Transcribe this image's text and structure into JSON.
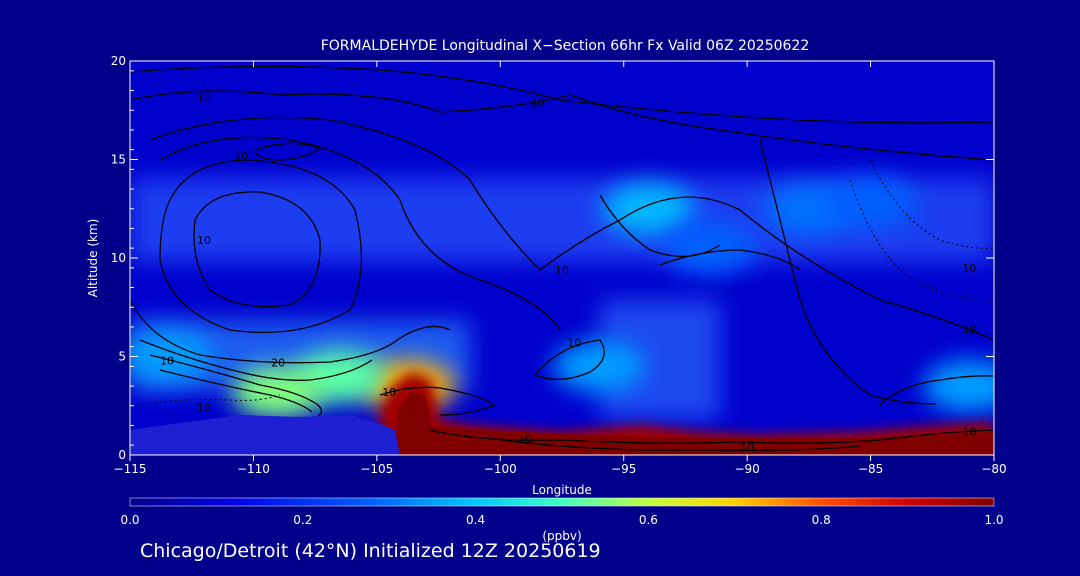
{
  "chart_data": {
    "type": "heatmap",
    "title": "FORMALDEHYDE Longitudinal X−Section 66hr  Fx Valid 06Z 20250622",
    "xlabel": "Longitude",
    "ylabel": "Altitude (km)",
    "xlim": [
      -115,
      -80
    ],
    "ylim": [
      0,
      20
    ],
    "x_ticks": [
      "−115",
      "−110",
      "−105",
      "−100",
      "−95",
      "−90",
      "−85",
      "−80"
    ],
    "x_tick_values": [
      -115,
      -110,
      -105,
      -100,
      -95,
      -90,
      -85,
      -80
    ],
    "y_ticks": [
      "0",
      "5",
      "10",
      "15",
      "20"
    ],
    "y_tick_values": [
      0,
      5,
      10,
      15,
      20
    ],
    "colorbar": {
      "label": "(ppbv)",
      "range": [
        0.0,
        1.0
      ],
      "ticks": [
        "0.0",
        "0.2",
        "0.4",
        "0.6",
        "0.8",
        "1.0"
      ],
      "tick_values": [
        0.0,
        0.2,
        0.4,
        0.6,
        0.8,
        1.0
      ]
    },
    "hotspots": [
      {
        "lon": -94.0,
        "alt": 12.5,
        "value": 0.38
      },
      {
        "lon": -87.5,
        "alt": 12.5,
        "value": 0.3
      },
      {
        "lon": -91.5,
        "alt": 10.5,
        "value": 0.28
      },
      {
        "lon": -96.0,
        "alt": 4.5,
        "value": 0.35
      },
      {
        "lon": -103.7,
        "alt": 3.5,
        "value": 0.72
      },
      {
        "lon": -106.5,
        "alt": 4.0,
        "value": 0.52
      },
      {
        "lon": -109.0,
        "alt": 3.2,
        "value": 0.55
      },
      {
        "lon": -113.5,
        "alt": 5.0,
        "value": 0.35
      },
      {
        "lon": -81.0,
        "alt": 3.5,
        "value": 0.35
      },
      {
        "lon": -85.0,
        "alt": 12.8,
        "value": 0.28
      }
    ],
    "boundary_layer_peak": 1.0,
    "contour_labels": [
      {
        "text": "10",
        "lon": -112.0,
        "alt": 18.0
      },
      {
        "text": "10",
        "lon": -98.5,
        "alt": 17.7
      },
      {
        "text": "10",
        "lon": -110.5,
        "alt": 15.0
      },
      {
        "text": "10",
        "lon": -112.0,
        "alt": 10.7
      },
      {
        "text": "10",
        "lon": -97.5,
        "alt": 9.2
      },
      {
        "text": "10",
        "lon": -97.0,
        "alt": 5.5
      },
      {
        "text": "10",
        "lon": -113.5,
        "alt": 4.6
      },
      {
        "text": "20",
        "lon": -109.0,
        "alt": 4.5
      },
      {
        "text": "10",
        "lon": -112.0,
        "alt": 2.2
      },
      {
        "text": "10",
        "lon": -104.5,
        "alt": 3.0
      },
      {
        "text": "10",
        "lon": -99.0,
        "alt": 0.6
      },
      {
        "text": "10",
        "lon": -90.0,
        "alt": 0.2
      },
      {
        "text": "10",
        "lon": -81.0,
        "alt": 1.0
      },
      {
        "text": "10",
        "lon": -81.0,
        "alt": 9.3
      },
      {
        "text": "10",
        "lon": -81.0,
        "alt": 6.2
      }
    ]
  },
  "footer": {
    "caption": "Chicago/Detroit (42°N) Initialized 12Z 20250619"
  },
  "colors": {
    "background": "#00008b",
    "field_base": "#0000cd",
    "terrain": "#1e1ed2",
    "contour": "#000000"
  }
}
